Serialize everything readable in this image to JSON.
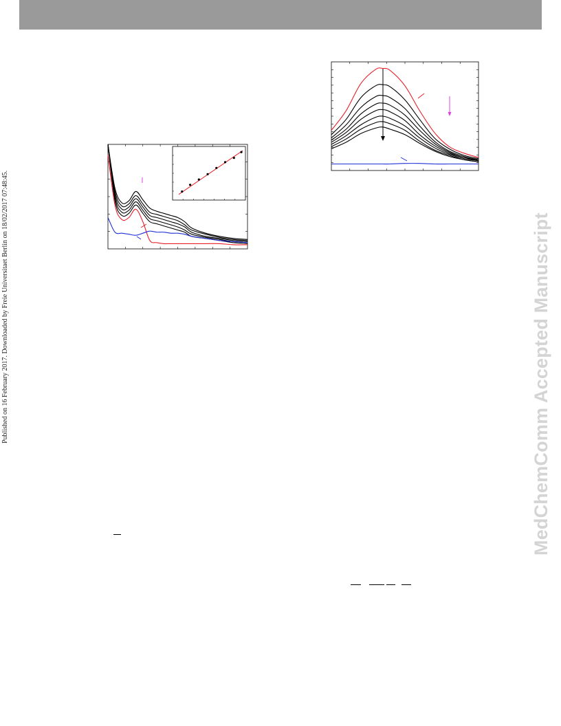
{
  "page": {
    "side_note": "Published on 16 February 2017. Downloaded by Freie Universitaet Berlin on 18/02/2017 07:48:45.",
    "watermark": "MedChemComm Accepted Manuscript"
  },
  "colors": {
    "header": "#9a9a9a",
    "watermark": "#d4d4d4",
    "red": "#e8202a",
    "blue": "#1f2fd8",
    "magenta": "#e040e0",
    "black": "#000000"
  },
  "chart_data": [
    {
      "type": "line",
      "description_visible": "absorption spectra family with inset linear fit",
      "x": [
        0,
        0.05,
        0.1,
        0.15,
        0.2,
        0.25,
        0.3,
        0.35,
        0.4,
        0.45,
        0.5,
        0.55,
        0.6,
        0.7,
        0.8,
        0.9,
        1.0
      ],
      "series": [
        {
          "color": "black",
          "values": [
            1.0,
            0.58,
            0.44,
            0.46,
            0.55,
            0.47,
            0.39,
            0.36,
            0.34,
            0.32,
            0.3,
            0.26,
            0.2,
            0.15,
            0.12,
            0.1,
            0.09
          ]
        },
        {
          "color": "black",
          "values": [
            1.0,
            0.55,
            0.41,
            0.43,
            0.51,
            0.43,
            0.35,
            0.33,
            0.31,
            0.29,
            0.27,
            0.23,
            0.18,
            0.14,
            0.11,
            0.09,
            0.08
          ]
        },
        {
          "color": "black",
          "values": [
            1.0,
            0.52,
            0.38,
            0.4,
            0.48,
            0.4,
            0.32,
            0.3,
            0.28,
            0.26,
            0.24,
            0.21,
            0.16,
            0.12,
            0.1,
            0.08,
            0.07
          ]
        },
        {
          "color": "black",
          "values": [
            1.0,
            0.49,
            0.35,
            0.37,
            0.45,
            0.37,
            0.29,
            0.27,
            0.25,
            0.23,
            0.21,
            0.18,
            0.14,
            0.11,
            0.09,
            0.07,
            0.06
          ]
        },
        {
          "color": "black",
          "values": [
            1.0,
            0.46,
            0.32,
            0.34,
            0.42,
            0.34,
            0.26,
            0.24,
            0.22,
            0.2,
            0.18,
            0.16,
            0.12,
            0.1,
            0.08,
            0.06,
            0.05
          ]
        },
        {
          "color": "red",
          "values": [
            0.9,
            0.42,
            0.28,
            0.3,
            0.38,
            0.26,
            0.08,
            0.06,
            0.05,
            0.05,
            0.05,
            0.05,
            0.05,
            0.05,
            0.05,
            0.04,
            0.04
          ]
        },
        {
          "color": "blue",
          "values": [
            0.3,
            0.16,
            0.15,
            0.14,
            0.13,
            0.15,
            0.17,
            0.16,
            0.16,
            0.15,
            0.15,
            0.14,
            0.12,
            0.1,
            0.08,
            0.07,
            0.06
          ]
        }
      ],
      "inset": {
        "type": "scatter",
        "x": [
          0.1,
          0.22,
          0.35,
          0.48,
          0.61,
          0.74,
          0.87,
          0.98
        ],
        "y": [
          0.12,
          0.26,
          0.37,
          0.48,
          0.61,
          0.73,
          0.82,
          0.94
        ],
        "fit_color": "red"
      }
    },
    {
      "type": "line",
      "description_visible": "emission spectra family decreasing downward",
      "x": [
        0,
        0.1,
        0.2,
        0.3,
        0.35,
        0.4,
        0.5,
        0.6,
        0.7,
        0.8,
        0.9,
        1.0
      ],
      "series": [
        {
          "color": "red",
          "values": [
            0.37,
            0.55,
            0.8,
            0.93,
            0.94,
            0.92,
            0.78,
            0.55,
            0.35,
            0.22,
            0.16,
            0.12
          ]
        },
        {
          "color": "black",
          "values": [
            0.33,
            0.47,
            0.67,
            0.78,
            0.79,
            0.77,
            0.65,
            0.47,
            0.3,
            0.2,
            0.14,
            0.11
          ]
        },
        {
          "color": "black",
          "values": [
            0.3,
            0.42,
            0.58,
            0.68,
            0.69,
            0.67,
            0.57,
            0.41,
            0.27,
            0.18,
            0.13,
            0.1
          ]
        },
        {
          "color": "black",
          "values": [
            0.28,
            0.38,
            0.52,
            0.61,
            0.62,
            0.6,
            0.51,
            0.37,
            0.25,
            0.17,
            0.12,
            0.1
          ]
        },
        {
          "color": "black",
          "values": [
            0.26,
            0.35,
            0.47,
            0.55,
            0.56,
            0.54,
            0.46,
            0.33,
            0.23,
            0.16,
            0.12,
            0.09
          ]
        },
        {
          "color": "black",
          "values": [
            0.24,
            0.32,
            0.42,
            0.49,
            0.5,
            0.48,
            0.41,
            0.3,
            0.21,
            0.15,
            0.11,
            0.09
          ]
        },
        {
          "color": "black",
          "values": [
            0.22,
            0.29,
            0.38,
            0.44,
            0.45,
            0.43,
            0.37,
            0.27,
            0.19,
            0.14,
            0.1,
            0.08
          ]
        },
        {
          "color": "black",
          "values": [
            0.2,
            0.26,
            0.34,
            0.39,
            0.4,
            0.38,
            0.33,
            0.25,
            0.18,
            0.13,
            0.1,
            0.08
          ]
        },
        {
          "color": "blue",
          "values": [
            0.06,
            0.06,
            0.06,
            0.06,
            0.06,
            0.06,
            0.065,
            0.065,
            0.06,
            0.06,
            0.06,
            0.06
          ]
        }
      ]
    }
  ]
}
